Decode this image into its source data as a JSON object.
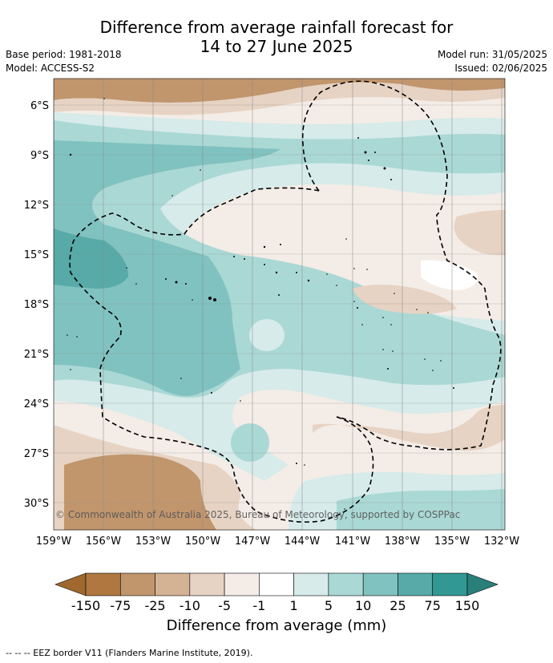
{
  "header": {
    "title_line1": "Difference from average rainfall forecast for",
    "title_line2": "14 to 27 June 2025",
    "base_period": "Base period: 1981-2018",
    "model": "Model: ACCESS-S2",
    "model_run": "Model run: 31/05/2025",
    "issued": "Issued: 02/06/2025"
  },
  "map": {
    "lat_labels": [
      "6°S",
      "9°S",
      "12°S",
      "15°S",
      "18°S",
      "21°S",
      "24°S",
      "27°S",
      "30°S"
    ],
    "lon_labels": [
      "159°W",
      "156°W",
      "153°W",
      "150°W",
      "147°W",
      "144°W",
      "141°W",
      "138°W",
      "135°W",
      "132°W"
    ],
    "copyright": "© Commonwealth of Australia 2025, Bureau of Meteorology, supported by COSPPac"
  },
  "colorbar": {
    "labels": [
      "-150",
      "-75",
      "-25",
      "-10",
      "-5",
      "-1",
      "1",
      "5",
      "10",
      "25",
      "75",
      "150"
    ],
    "colors": [
      "#a0682e",
      "#b07840",
      "#c1966d",
      "#d4b394",
      "#e6d3c3",
      "#f4ece6",
      "#ffffff",
      "#d6ebea",
      "#aad8d5",
      "#80c2bf",
      "#57aaa8",
      "#329893",
      "#2a7f7a"
    ],
    "title": "Difference from average (mm)"
  },
  "footer": {
    "legend": "--  --  -- EEZ border V11 (Flanders Marine Institute, 2019)."
  }
}
